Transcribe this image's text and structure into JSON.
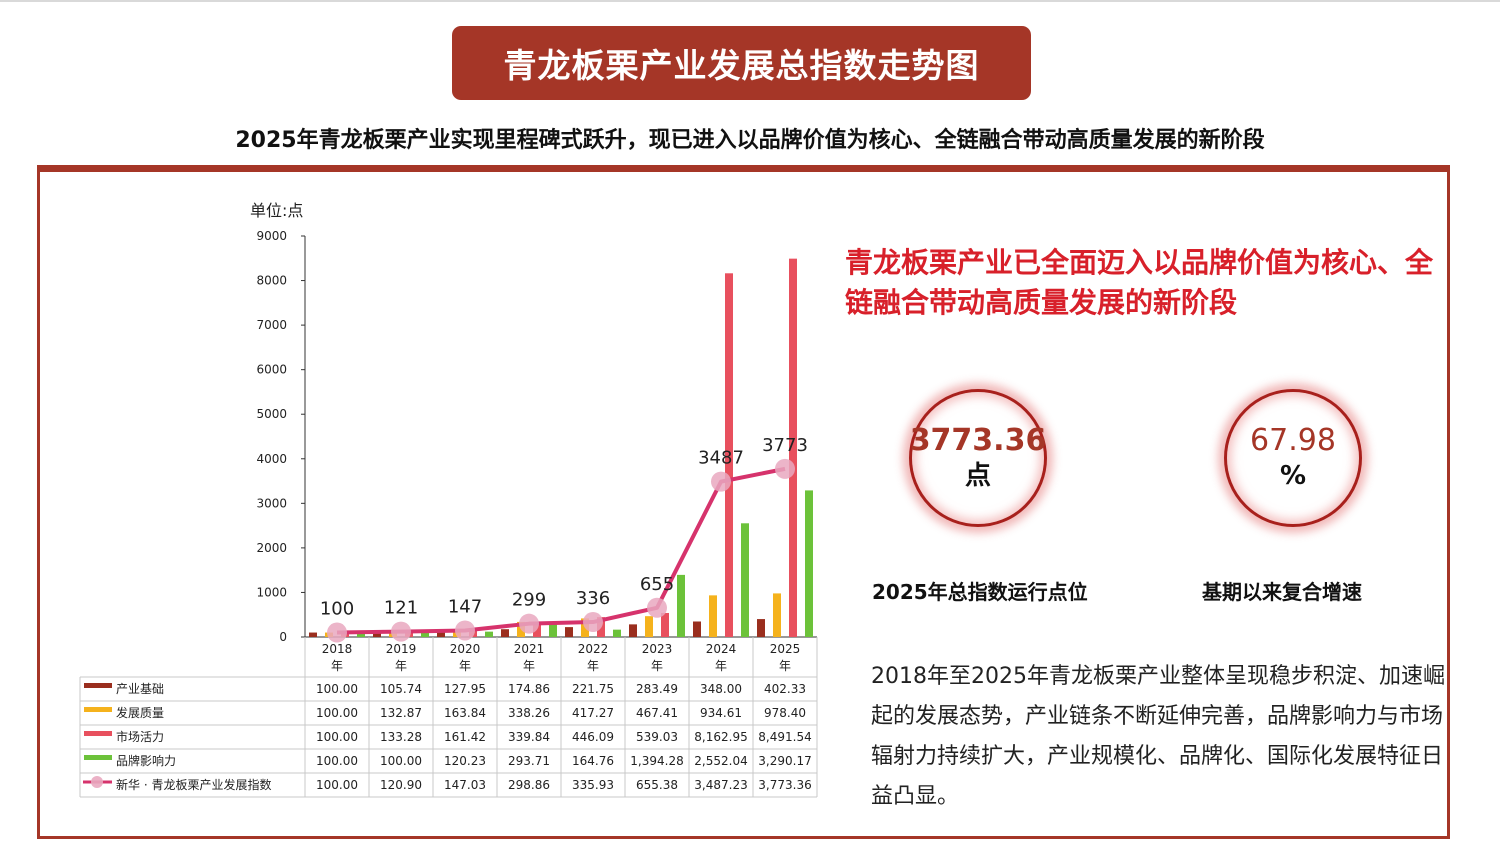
{
  "header": {
    "title": "青龙板栗产业发展总指数走势图",
    "subtitle": "2025年青龙板栗产业实现里程碑式跃升，现已进入以品牌价值为核心、全链融合带动高质量发展的新阶段"
  },
  "headline": "青龙板栗产业已全面迈入以品牌价值为核心、全链融合带动高质量发展的新阶段",
  "kpis": [
    {
      "value": "3773.36",
      "unit": "点",
      "label": "2025年总指数运行点位",
      "color": "#a53627",
      "bold": true
    },
    {
      "value": "67.98",
      "unit": "%",
      "label": "基期以来复合增速",
      "color": "#a53627",
      "bold": false
    }
  ],
  "summary": "2018年至2025年青龙板栗产业整体呈现稳步积淀、加速崛起的发展态势，产业链条不断延伸完善，品牌影响力与市场辐射力持续扩大，产业规模化、品牌化、国际化发展特征日益凸显。",
  "chart_data": {
    "type": "bar",
    "unit_label": "单位:点",
    "categories": [
      "2018年",
      "2019年",
      "2020年",
      "2021年",
      "2022年",
      "2023年",
      "2024年",
      "2025年"
    ],
    "ylim": [
      0,
      9000
    ],
    "yticks": [
      "0",
      "1000",
      "2000",
      "3000",
      "4000",
      "5000",
      "6000",
      "7000",
      "8000",
      "9000"
    ],
    "series": [
      {
        "name": "产业基础",
        "kind": "bar",
        "color": "#9a2e1e",
        "values": [
          100.0,
          105.74,
          127.95,
          174.86,
          221.75,
          283.49,
          348.0,
          402.33
        ],
        "labels": [
          "100.00",
          "105.74",
          "127.95",
          "174.86",
          "221.75",
          "283.49",
          "348.00",
          "402.33"
        ]
      },
      {
        "name": "发展质量",
        "kind": "bar",
        "color": "#f5b21c",
        "values": [
          100.0,
          132.87,
          163.84,
          338.26,
          417.27,
          467.41,
          934.61,
          978.4
        ],
        "labels": [
          "100.00",
          "132.87",
          "163.84",
          "338.26",
          "417.27",
          "467.41",
          "934.61",
          "978.40"
        ]
      },
      {
        "name": "市场活力",
        "kind": "bar",
        "color": "#e8505e",
        "values": [
          100.0,
          133.28,
          161.42,
          339.84,
          446.09,
          539.03,
          8162.95,
          8491.54
        ],
        "labels": [
          "100.00",
          "133.28",
          "161.42",
          "339.84",
          "446.09",
          "539.03",
          "8,162.95",
          "8,491.54"
        ]
      },
      {
        "name": "品牌影响力",
        "kind": "bar",
        "color": "#6cc23a",
        "values": [
          100.0,
          100.0,
          120.23,
          293.71,
          164.76,
          1394.28,
          2552.04,
          3290.17
        ],
        "labels": [
          "100.00",
          "100.00",
          "120.23",
          "293.71",
          "164.76",
          "1,394.28",
          "2,552.04",
          "3,290.17"
        ]
      },
      {
        "name": "新华 · 青龙板栗产业发展指数",
        "kind": "line",
        "color": "#d6336c",
        "values": [
          100.0,
          120.9,
          147.03,
          298.86,
          335.93,
          655.38,
          3487.23,
          3773.36
        ],
        "labels": [
          "100.00",
          "120.90",
          "147.03",
          "298.86",
          "335.93",
          "655.38",
          "3,487.23",
          "3,773.36"
        ],
        "point_labels": [
          "100",
          "121",
          "147",
          "299",
          "336",
          "655",
          "3487",
          "3773"
        ]
      }
    ]
  }
}
